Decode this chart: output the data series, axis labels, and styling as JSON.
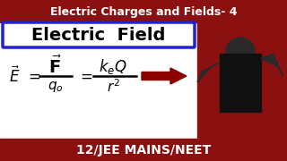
{
  "title_text": "Electric Charges and Fields- 4",
  "subtitle_box_text": "Electric  Field",
  "bottom_text": "12/JEE MAINS/NEET",
  "bg_color": "#8b1010",
  "header_bg": "#8b1010",
  "footer_bg": "#8b1010",
  "header_text_color": "#ffffff",
  "footer_text_color": "#ffffff",
  "formula_color": "#000000",
  "box_border_color": "#2222cc",
  "box_bg": "#ffffff",
  "arrow_color": "#8b0000",
  "subtitle_text_color": "#000000",
  "formula_area_bg": "#ffffff",
  "person_bg": "#8b1010"
}
